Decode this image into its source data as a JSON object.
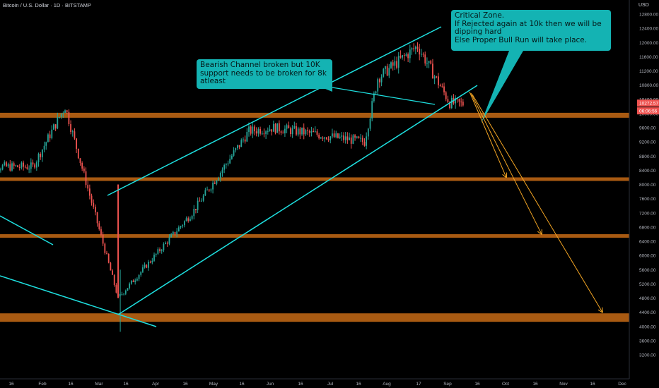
{
  "header": {
    "symbol": "Bitcoin / U.S. Dollar",
    "interval": "1D",
    "exchange": "BITSTAMP"
  },
  "price_axis": {
    "currency": "USD",
    "last_price": "10272.57",
    "countdown": "06:06:56"
  },
  "annotations": {
    "callout_1": [
      "Bearish Channel broken but 10K",
      "support needs to be broken for 8k",
      "atleast"
    ],
    "callout_2": [
      "Critical Zone.",
      "If Rejected again at 10k then we will be",
      "dipping hard",
      "Else Proper Bull Run will take place."
    ]
  },
  "colors": {
    "background": "#000000",
    "up_candle": "#26a69a",
    "down_candle": "#ef5350",
    "trendline": "#1ee0e0",
    "support_zone": "#a85a12",
    "projection": "#f5a623",
    "callout": "#14b3b3",
    "price_label": "#ef5350"
  },
  "chart_data": {
    "type": "candlestick",
    "title": "Bitcoin / U.S. Dollar, 1D, BITSTAMP",
    "y_ticks": [
      "12800.00",
      "12400.00",
      "12000.00",
      "11600.00",
      "11200.00",
      "10800.00",
      "10400.00",
      "10000.00",
      "9600.00",
      "9200.00",
      "8800.00",
      "8400.00",
      "8000.00",
      "7600.00",
      "7200.00",
      "6800.00",
      "6400.00",
      "6000.00",
      "5600.00",
      "5200.00",
      "4800.00",
      "4400.00",
      "4000.00",
      "3600.00",
      "3200.00"
    ],
    "y_range": [
      3200,
      13200
    ],
    "x_ticks": [
      "16",
      "Feb",
      "16",
      "Mar",
      "16",
      "Apr",
      "16",
      "May",
      "16",
      "Jun",
      "16",
      "Jul",
      "16",
      "Aug",
      "17",
      "Sep",
      "16",
      "Oct",
      "16",
      "Nov",
      "16",
      "Dec"
    ],
    "anchors": [
      {
        "date": "Jan 27",
        "high": 9600,
        "low": 7600,
        "close": 8500
      },
      {
        "date": "Feb 13",
        "high": 10500,
        "low": 9900,
        "close": 10200
      },
      {
        "date": "Mar 12",
        "high": 8000,
        "low": 3850,
        "close": 4800
      },
      {
        "date": "Apr 20",
        "high": 7700,
        "low": 6900,
        "close": 7200
      },
      {
        "date": "May 20",
        "high": 9800,
        "low": 8900,
        "close": 9500
      },
      {
        "date": "Jun 2",
        "high": 10500,
        "low": 9300,
        "close": 9600
      },
      {
        "date": "Jul 20",
        "high": 9300,
        "low": 9000,
        "close": 9200
      },
      {
        "date": "Jul 27",
        "high": 11300,
        "low": 9600,
        "close": 11000
      },
      {
        "date": "Aug 17",
        "high": 12450,
        "low": 11700,
        "close": 11900
      },
      {
        "date": "Sep 3",
        "high": 11500,
        "low": 10000,
        "close": 10300
      },
      {
        "date": "Sep 10",
        "high": 10450,
        "low": 10000,
        "close": 10272.57
      }
    ],
    "support_zones": [
      {
        "level": 9950
      },
      {
        "level": 8150
      },
      {
        "level": 6550
      },
      {
        "level": 4250
      }
    ],
    "projection_targets": [
      8200,
      6600,
      4400
    ]
  }
}
